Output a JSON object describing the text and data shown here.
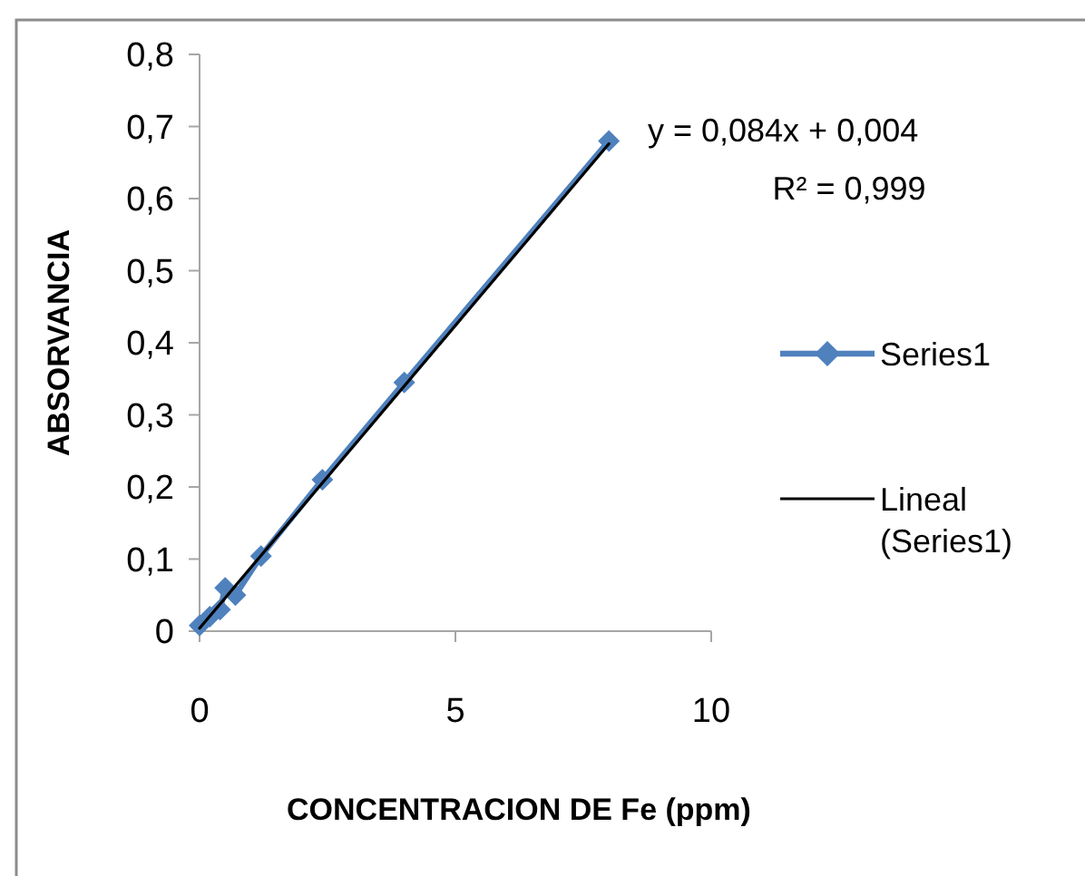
{
  "chart_data": {
    "type": "line",
    "xlabel": "CONCENTRACION DE Fe (ppm)",
    "ylabel": "ABSORVANCIA",
    "annotations": [
      "y = 0,084x + 0,004",
      "R² = 0,999"
    ],
    "series": [
      {
        "name": "Series1",
        "color": "#4f81bd",
        "x": [
          0,
          0.2,
          0.4,
          0.5,
          0.7,
          1.2,
          2.4,
          4,
          8
        ],
        "values": [
          0.008,
          0.02,
          0.03,
          0.06,
          0.05,
          0.104,
          0.21,
          0.345,
          0.68
        ],
        "marker": "diamond"
      },
      {
        "name": "Lineal (Series1)",
        "color": "#000000",
        "x": [
          0,
          8
        ],
        "values": [
          0.004,
          0.676
        ],
        "marker": "none"
      }
    ],
    "xlim": [
      0,
      10
    ],
    "xticks": [
      0,
      5,
      10
    ],
    "ylim": [
      0,
      0.8
    ],
    "yticks": [
      0,
      {
        "value": 0.1,
        "label": "0,1"
      },
      {
        "value": 0.2,
        "label": "0,2"
      },
      {
        "value": 0.3,
        "label": "0,3"
      },
      {
        "value": 0.4,
        "label": "0,4"
      },
      {
        "value": 0.5,
        "label": "0,5"
      },
      {
        "value": 0.6,
        "label": "0,6"
      },
      {
        "value": 0.7,
        "label": "0,7"
      },
      {
        "value": 0.8,
        "label": "0,8"
      }
    ],
    "legend": "right",
    "line_style": "solid"
  }
}
